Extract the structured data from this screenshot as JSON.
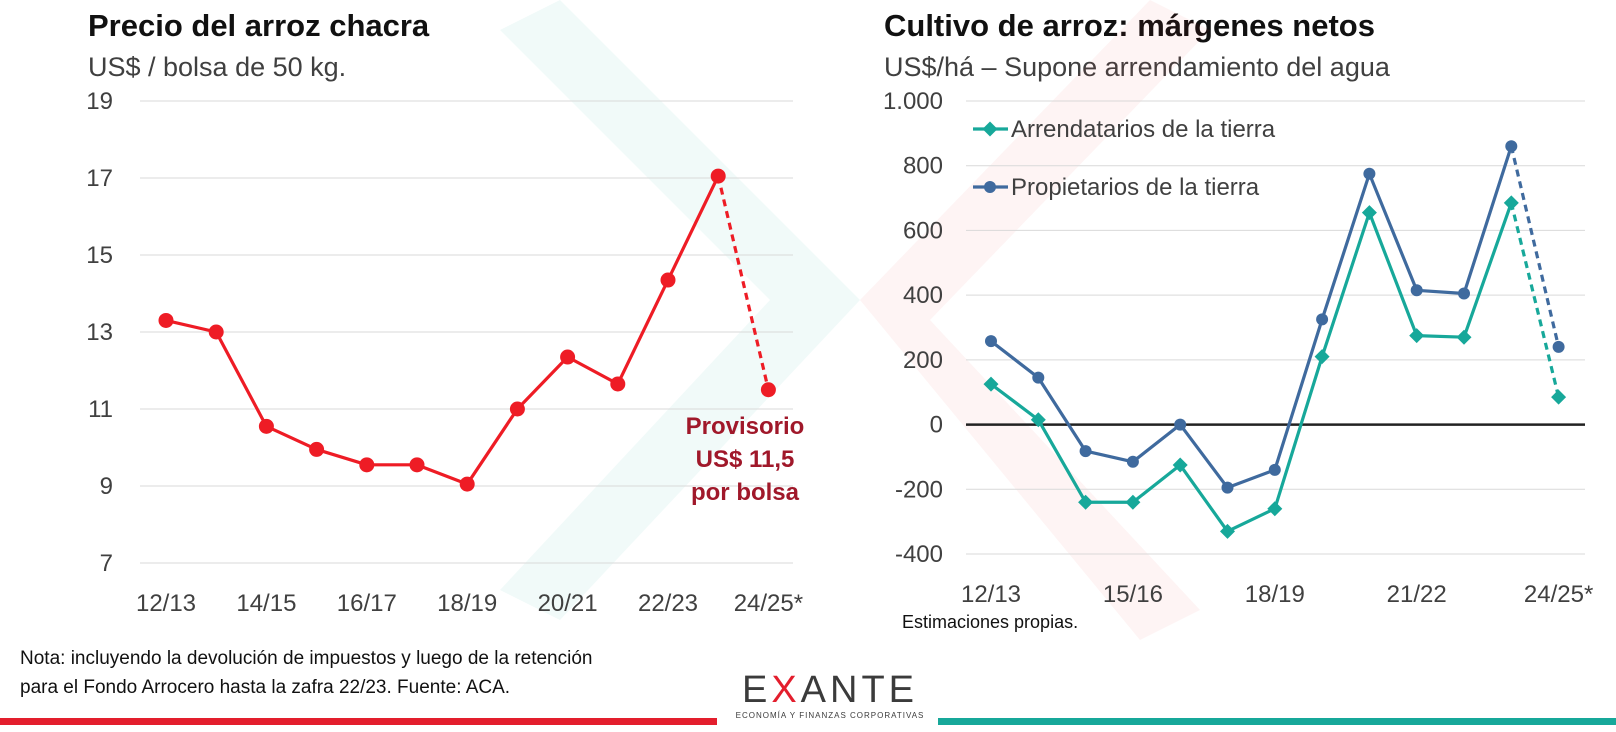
{
  "chart_data": [
    {
      "type": "line",
      "title": "Precio del arroz chacra",
      "subtitle": "US$ / bolsa de 50 kg.",
      "x": [
        "12/13",
        "13/14",
        "14/15",
        "15/16",
        "16/17",
        "17/18",
        "18/19",
        "19/20",
        "20/21",
        "21/22",
        "22/23",
        "23/24",
        "24/25*"
      ],
      "x_tick_labels": [
        "12/13",
        "14/15",
        "16/17",
        "18/19",
        "20/21",
        "22/23",
        "24/25*"
      ],
      "series": [
        {
          "name": "",
          "values": [
            13.3,
            13.0,
            10.55,
            9.95,
            9.55,
            9.55,
            9.05,
            11.0,
            12.35,
            11.65,
            14.35,
            17.05,
            11.5
          ],
          "dashed_from_index": 11,
          "color": "#ee1c25"
        }
      ],
      "ylim": [
        7,
        19
      ],
      "y_ticks": [
        7,
        9,
        11,
        13,
        15,
        17,
        19
      ],
      "y_tick_labels": [
        "7",
        "9",
        "11",
        "13",
        "15",
        "17",
        "19"
      ],
      "grid": true,
      "annotation": {
        "lines": [
          "Provisorio",
          "US$ 11,5",
          "por bolsa"
        ],
        "color": "#a0182a"
      }
    },
    {
      "type": "line",
      "title": "Cultivo de arroz: márgenes netos",
      "subtitle": "US$/há – Supone arrendamiento del agua",
      "x": [
        "12/13",
        "13/14",
        "14/15",
        "15/16",
        "16/17",
        "17/18",
        "18/19",
        "19/20",
        "20/21",
        "21/22",
        "22/23",
        "23/24",
        "24/25*"
      ],
      "x_tick_labels": [
        "12/13",
        "15/16",
        "18/19",
        "21/22",
        "24/25*"
      ],
      "series": [
        {
          "name": "Arrendatarios de la tierra",
          "marker": "diamond",
          "color": "#17a89a",
          "values": [
            125,
            15,
            -240,
            -240,
            -125,
            -330,
            -260,
            210,
            655,
            275,
            270,
            685,
            85
          ],
          "dashed_from_index": 11
        },
        {
          "name": "Propietarios de la tierra",
          "marker": "circle",
          "color": "#3f6a9e",
          "values": [
            258,
            145,
            -82,
            -115,
            0,
            -195,
            -140,
            325,
            775,
            415,
            405,
            860,
            240
          ],
          "dashed_from_index": 11
        }
      ],
      "ylim": [
        -400,
        1000
      ],
      "y_ticks": [
        -400,
        -200,
        0,
        200,
        400,
        600,
        800,
        1000
      ],
      "y_tick_labels": [
        "-400",
        "-200",
        "0",
        "200",
        "400",
        "600",
        "800",
        "1.000"
      ],
      "grid": true,
      "legend": "top-left",
      "note": "Estimaciones propias."
    }
  ],
  "footnote": {
    "line1": "Nota: incluyendo la devolución de impuestos y luego de la retención",
    "line2": "para el Fondo Arrocero hasta la zafra 22/23. Fuente: ACA."
  },
  "logo": {
    "prefix": "E",
    "accent": "X",
    "suffix": "ANTE",
    "tagline": "ECONOMÍA Y FINANZAS CORPORATIVAS"
  },
  "colors": {
    "brand_red": "#e31e2d",
    "brand_teal": "#17a89a"
  }
}
